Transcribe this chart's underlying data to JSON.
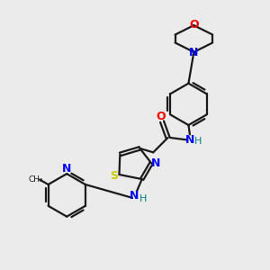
{
  "bg_color": "#ebebeb",
  "bond_color": "#1a1a1a",
  "N_color": "#0000ff",
  "O_color": "#ff0000",
  "S_color": "#cccc00",
  "H_color": "#008080",
  "lw": 1.6,
  "font_size": 9,
  "font_size_h": 8,
  "xlim": [
    0,
    10
  ],
  "ylim": [
    0,
    10
  ]
}
